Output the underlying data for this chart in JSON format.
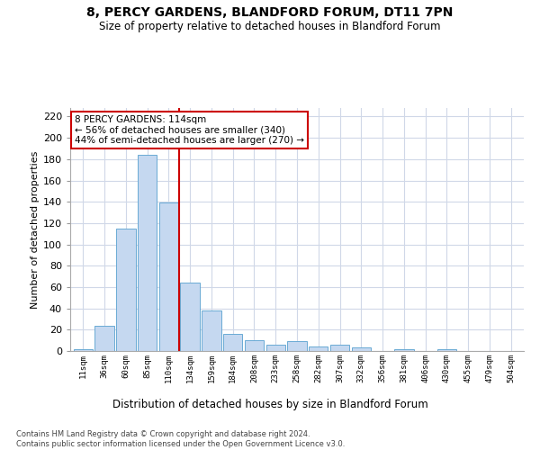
{
  "title_line1": "8, PERCY GARDENS, BLANDFORD FORUM, DT11 7PN",
  "title_line2": "Size of property relative to detached houses in Blandford Forum",
  "xlabel": "Distribution of detached houses by size in Blandford Forum",
  "ylabel": "Number of detached properties",
  "bar_labels": [
    "11sqm",
    "36sqm",
    "60sqm",
    "85sqm",
    "110sqm",
    "134sqm",
    "159sqm",
    "184sqm",
    "208sqm",
    "233sqm",
    "258sqm",
    "282sqm",
    "307sqm",
    "332sqm",
    "356sqm",
    "381sqm",
    "406sqm",
    "430sqm",
    "455sqm",
    "479sqm",
    "504sqm"
  ],
  "bar_values": [
    2,
    24,
    115,
    184,
    139,
    64,
    38,
    16,
    10,
    6,
    9,
    4,
    6,
    3,
    0,
    2,
    0,
    2,
    0,
    0,
    0
  ],
  "bar_color": "#c5d8f0",
  "bar_edge_color": "#6aaad4",
  "red_line_x": 4.5,
  "red_line_color": "#cc0000",
  "ylim": [
    0,
    228
  ],
  "yticks": [
    0,
    20,
    40,
    60,
    80,
    100,
    120,
    140,
    160,
    180,
    200,
    220
  ],
  "annotation_text": "8 PERCY GARDENS: 114sqm\n← 56% of detached houses are smaller (340)\n44% of semi-detached houses are larger (270) →",
  "annotation_box_color": "#ffffff",
  "annotation_box_edge": "#cc0000",
  "footer_text": "Contains HM Land Registry data © Crown copyright and database right 2024.\nContains public sector information licensed under the Open Government Licence v3.0.",
  "background_color": "#ffffff",
  "grid_color": "#d0d8e8"
}
